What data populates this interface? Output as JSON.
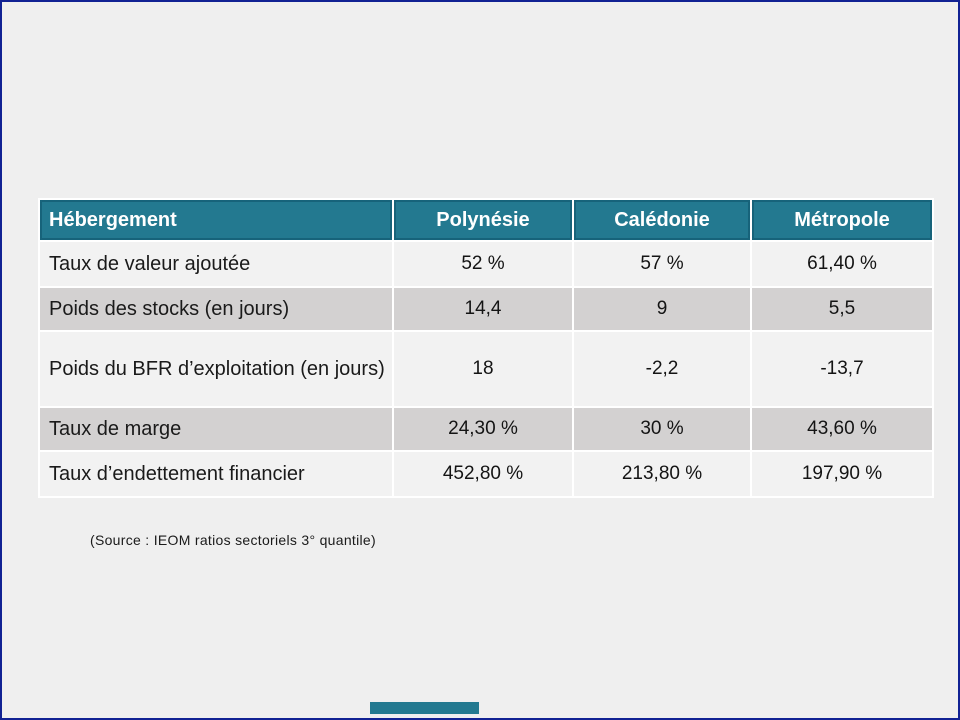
{
  "colors": {
    "slide_background": "#EFEFEF",
    "slide_border": "#112293",
    "header_background": "#237990",
    "header_border": "#17637A",
    "header_text": "#FFFFFF",
    "row_light": "#F2F2F2",
    "row_dark": "#D3D1D1",
    "body_text": "#1A1A1A",
    "accent_bar": "#237990"
  },
  "table": {
    "header": {
      "title": "Hébergement",
      "columns": [
        "Polynésie",
        "Calédonie",
        "Métropole"
      ]
    },
    "rows": [
      {
        "label": "Taux de valeur ajoutée",
        "values": [
          "52 %",
          "57 %",
          "61,40 %"
        ]
      },
      {
        "label": "Poids des stocks (en jours)",
        "values": [
          "14,4",
          "9",
          "5,5"
        ]
      },
      {
        "label": "Poids du BFR d’exploitation (en jours)",
        "values": [
          "18",
          "-2,2",
          "-13,7"
        ]
      },
      {
        "label": "Taux de marge",
        "values": [
          "24,30 %",
          "30 %",
          "43,60 %"
        ]
      },
      {
        "label": "Taux d’endettement financier",
        "values": [
          "452,80 %",
          "213,80 %",
          "197,90 %"
        ]
      }
    ]
  },
  "source_note": "(Source : IEOM ratios sectoriels 3° quantile)"
}
